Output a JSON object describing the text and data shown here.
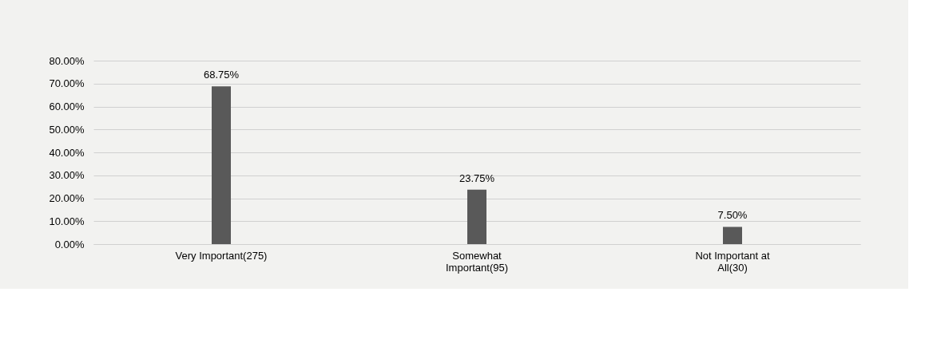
{
  "chart_data": {
    "type": "bar",
    "categories": [
      "Very Important(275)",
      "Somewhat\nImportant(95)",
      "Not Important at\nAll(30)"
    ],
    "values": [
      68.75,
      23.75,
      7.5
    ],
    "value_labels": [
      "68.75%",
      "23.75%",
      "7.50%"
    ],
    "color": "#595959",
    "ylim": [
      0,
      80
    ],
    "yticks": [
      {
        "value": 0,
        "label": "0.00%"
      },
      {
        "value": 10,
        "label": "10.00%"
      },
      {
        "value": 20,
        "label": "20.00%"
      },
      {
        "value": 30,
        "label": "30.00%"
      },
      {
        "value": 40,
        "label": "40.00%"
      },
      {
        "value": 50,
        "label": "50.00%"
      },
      {
        "value": 60,
        "label": "60.00%"
      },
      {
        "value": 70,
        "label": "70.00%"
      },
      {
        "value": 80,
        "label": "80.00%"
      }
    ],
    "grid": "y"
  }
}
